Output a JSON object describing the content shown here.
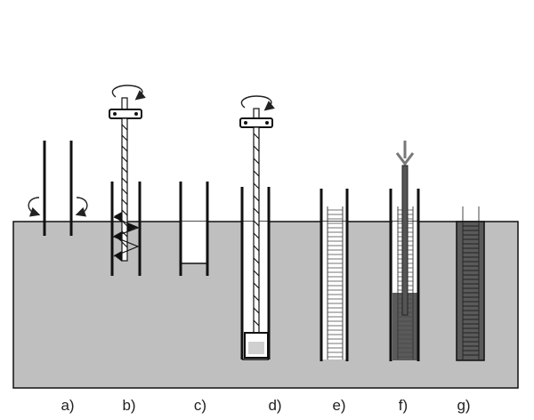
{
  "colors": {
    "ground": "#bfbfbf",
    "casing": "#111111",
    "concrete": "#5a5a5a",
    "arrow": "#777777",
    "white": "#ffffff"
  },
  "steps": [
    {
      "id": "a",
      "label": "a)",
      "icon": "rotating-casing-icon"
    },
    {
      "id": "b",
      "label": "b)",
      "icon": "auger-drilling-icon"
    },
    {
      "id": "c",
      "label": "c)",
      "icon": "open-bore-icon"
    },
    {
      "id": "d",
      "label": "d)",
      "icon": "cleaning-bucket-icon"
    },
    {
      "id": "e",
      "label": "e)",
      "icon": "reinforcement-cage-icon"
    },
    {
      "id": "f",
      "label": "f)",
      "icon": "tremie-concreting-icon"
    },
    {
      "id": "g",
      "label": "g)",
      "icon": "finished-pile-icon"
    }
  ]
}
